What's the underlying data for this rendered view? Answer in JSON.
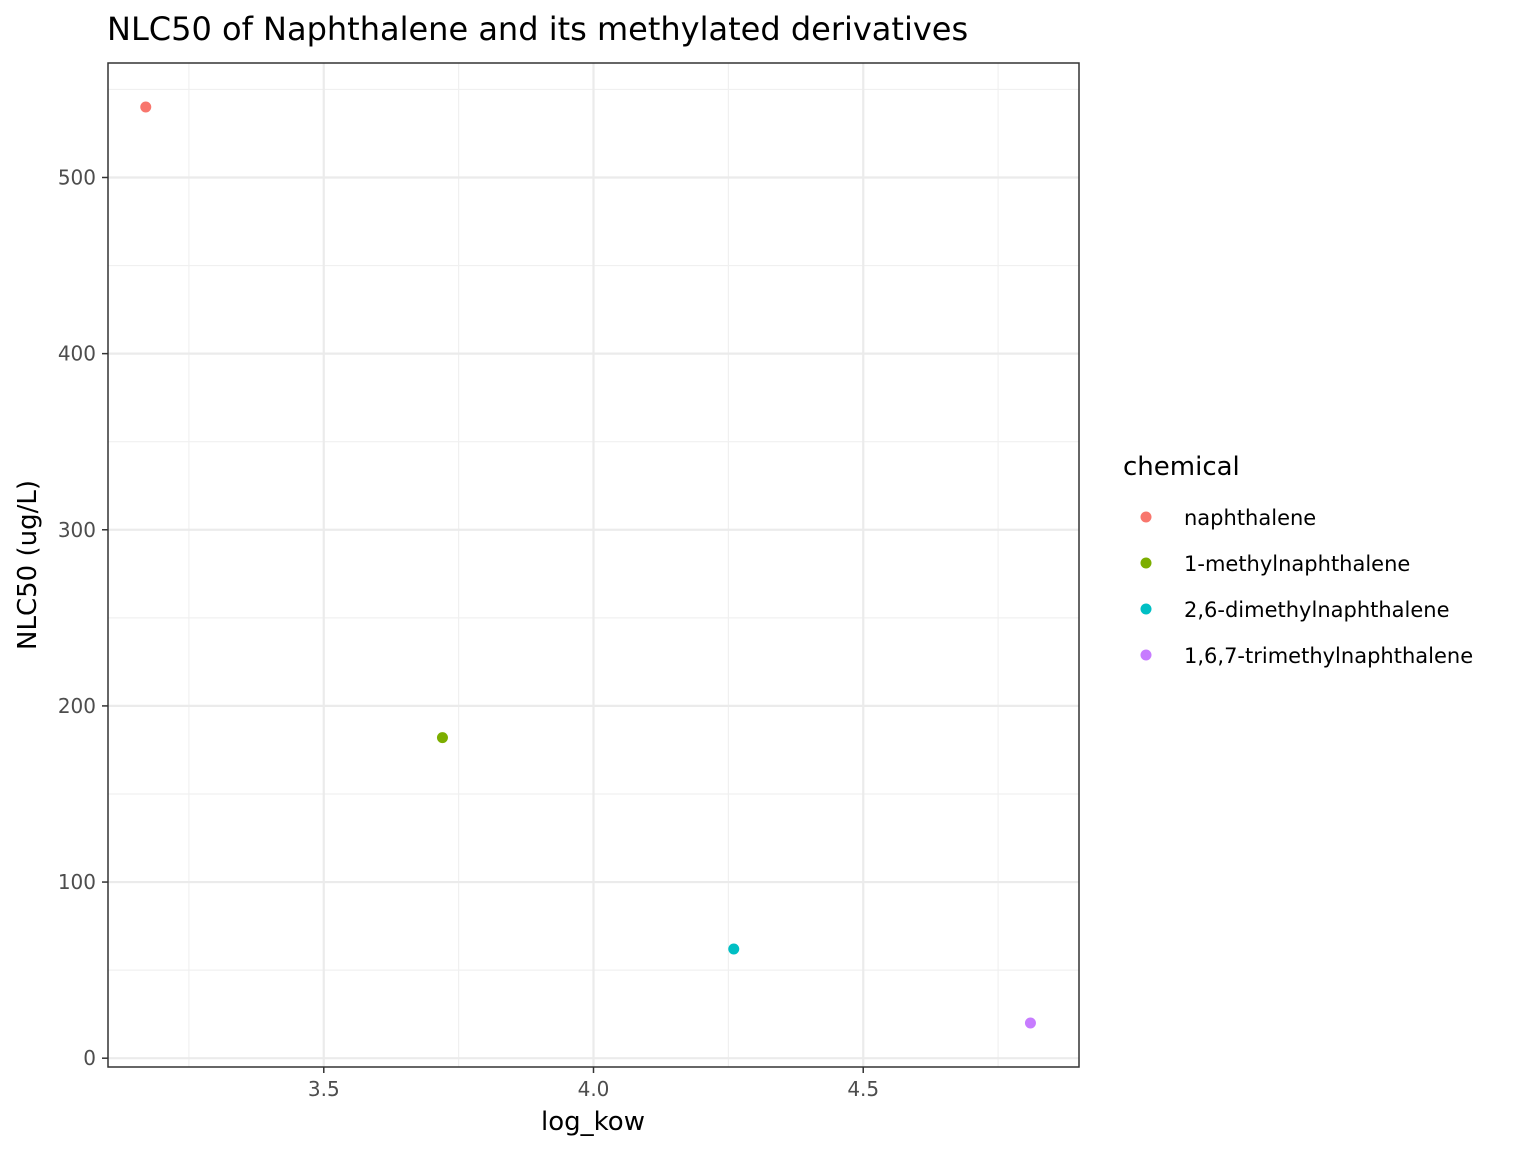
{
  "chart_data": {
    "type": "scatter",
    "title": "NLC50 of Naphthalene and its methylated derivatives",
    "xlabel": "log_kow",
    "ylabel": "NLC50 (ug/L)",
    "xlim": [
      3.1,
      4.9
    ],
    "ylim": [
      -5,
      565
    ],
    "x_ticks": [
      3.5,
      4.0,
      4.5
    ],
    "x_tick_labels": [
      "3.5",
      "4.0",
      "4.5"
    ],
    "y_ticks": [
      0,
      100,
      200,
      300,
      400,
      500
    ],
    "y_tick_labels": [
      "0",
      "100",
      "200",
      "300",
      "400",
      "500"
    ],
    "grid": true,
    "legend": {
      "title": "chemical",
      "position": "right"
    },
    "series": [
      {
        "name": "naphthalene",
        "color": "#F8766D",
        "x": [
          3.17
        ],
        "y": [
          540
        ]
      },
      {
        "name": "1-methylnaphthalene",
        "color": "#7CAE00",
        "x": [
          3.72
        ],
        "y": [
          182
        ]
      },
      {
        "name": "2,6-dimethylnaphthalene",
        "color": "#00BFC4",
        "x": [
          4.26
        ],
        "y": [
          62
        ]
      },
      {
        "name": "1,6,7-trimethylnaphthalene",
        "color": "#C77CFF",
        "x": [
          4.81
        ],
        "y": [
          20
        ]
      }
    ]
  }
}
